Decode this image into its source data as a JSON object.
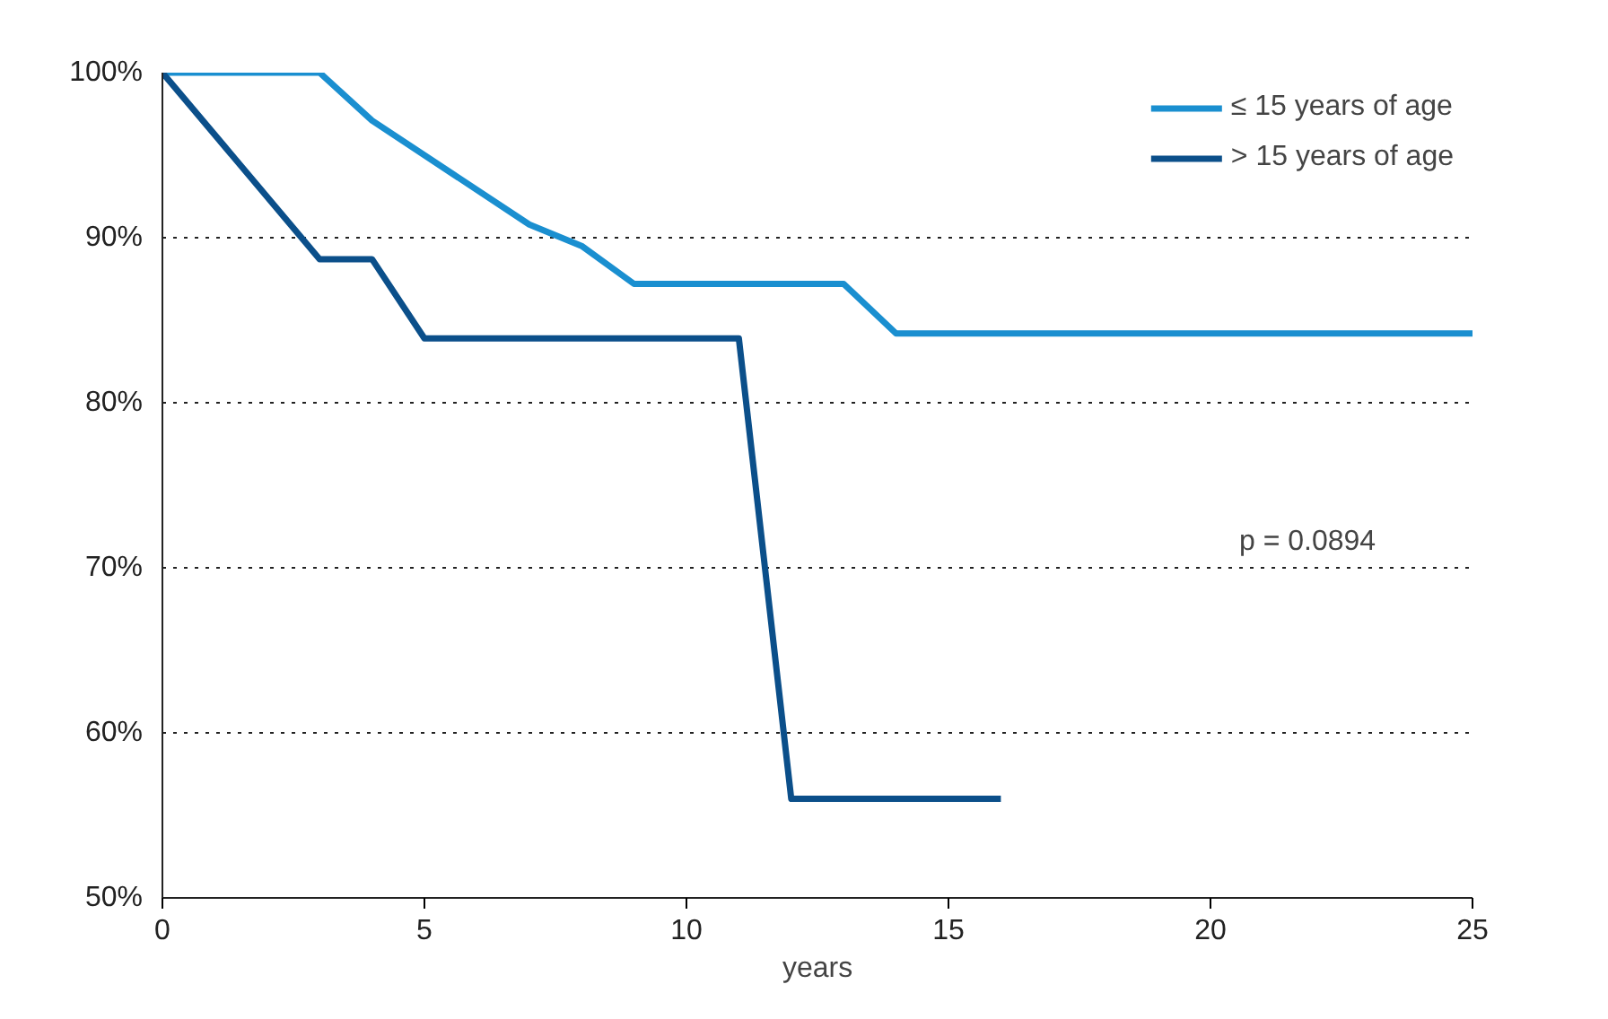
{
  "chart_data": {
    "type": "line",
    "xlabel": "years",
    "series": [
      {
        "name": "≤ 15 years of age",
        "color": "#1a8fd0",
        "x": [
          0,
          3,
          4,
          7,
          8,
          9,
          13,
          14,
          25
        ],
        "values": [
          100,
          100,
          97.1,
          90.8,
          89.5,
          87.2,
          87.2,
          84.2,
          84.2
        ]
      },
      {
        "name": "> 15 years of age",
        "color": "#0b4f8a",
        "x": [
          0,
          3,
          4,
          5,
          11,
          12,
          16
        ],
        "values": [
          100,
          88.7,
          88.7,
          83.9,
          83.9,
          56,
          56
        ]
      }
    ],
    "xlim": [
      0,
      25
    ],
    "xticks": [
      0,
      5,
      10,
      15,
      20,
      25
    ],
    "ylim": [
      50,
      100
    ],
    "yticks": [
      {
        "value": 50,
        "label": "50%"
      },
      {
        "value": 60,
        "label": "60%"
      },
      {
        "value": 70,
        "label": "70%"
      },
      {
        "value": 80,
        "label": "80%"
      },
      {
        "value": 90,
        "label": "90%"
      },
      {
        "value": 100,
        "label": "100%"
      }
    ],
    "grid": "y",
    "legend": "top right",
    "line_style": "solid",
    "annotations": [
      "p = 0.0894"
    ]
  }
}
